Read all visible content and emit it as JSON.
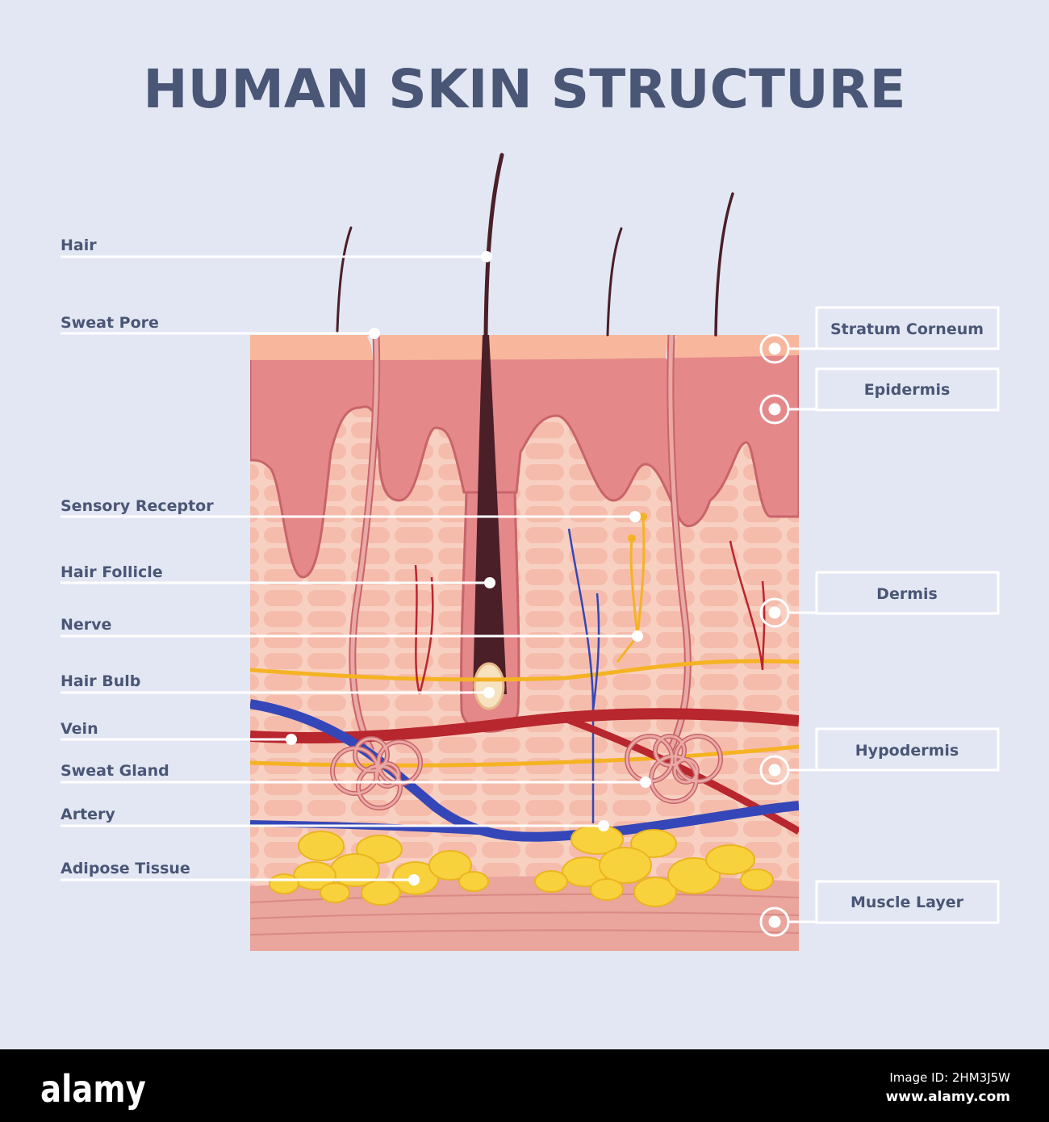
{
  "title": "HUMAN SKIN STRUCTURE",
  "left_labels": [
    {
      "text": "Hair"
    },
    {
      "text": "Sweat Pore"
    },
    {
      "text": "Sensory Receptor"
    },
    {
      "text": "Hair Follicle"
    },
    {
      "text": "Nerve"
    },
    {
      "text": "Hair Bulb"
    },
    {
      "text": "Vein"
    },
    {
      "text": "Sweat Gland"
    },
    {
      "text": "Artery"
    },
    {
      "text": "Adipose Tissue"
    }
  ],
  "right_labels": [
    {
      "text": "Stratum Corneum"
    },
    {
      "text": "Epidermis"
    },
    {
      "text": "Dermis"
    },
    {
      "text": "Hypodermis"
    },
    {
      "text": "Muscle Layer"
    }
  ],
  "colors": {
    "background": "#e3e7f3",
    "text": "#4a5676",
    "stratum_corneum": "#f8b79c",
    "epidermis": "#e5888a",
    "dermis": "#f8d0c2",
    "muscle": "#eaa59c",
    "fat": "#f8d23c",
    "artery": "#b8262e",
    "vein": "#3547b8",
    "nerve": "#f5b324",
    "hair": "#4a1f28"
  },
  "watermark": "alamy",
  "footer": {
    "logo": "alamy",
    "image_id": "Image ID: 2HM3J5W",
    "url": "www.alamy.com"
  }
}
